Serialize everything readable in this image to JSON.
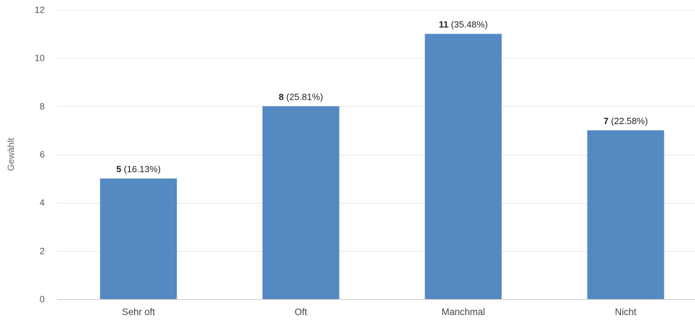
{
  "chart_data": {
    "type": "bar",
    "categories": [
      "Sehr oft",
      "Oft",
      "Manchmal",
      "Nicht"
    ],
    "values": [
      5,
      8,
      11,
      7
    ],
    "percentages": [
      "16.13%",
      "25.81%",
      "35.48%",
      "22.58%"
    ],
    "ylabel": "Gewählt",
    "xlabel": "",
    "ylim": [
      0,
      12
    ],
    "yticks": [
      0,
      2,
      4,
      6,
      8,
      10,
      12
    ],
    "grid": true,
    "colors": {
      "bar": "#5589c2"
    }
  }
}
